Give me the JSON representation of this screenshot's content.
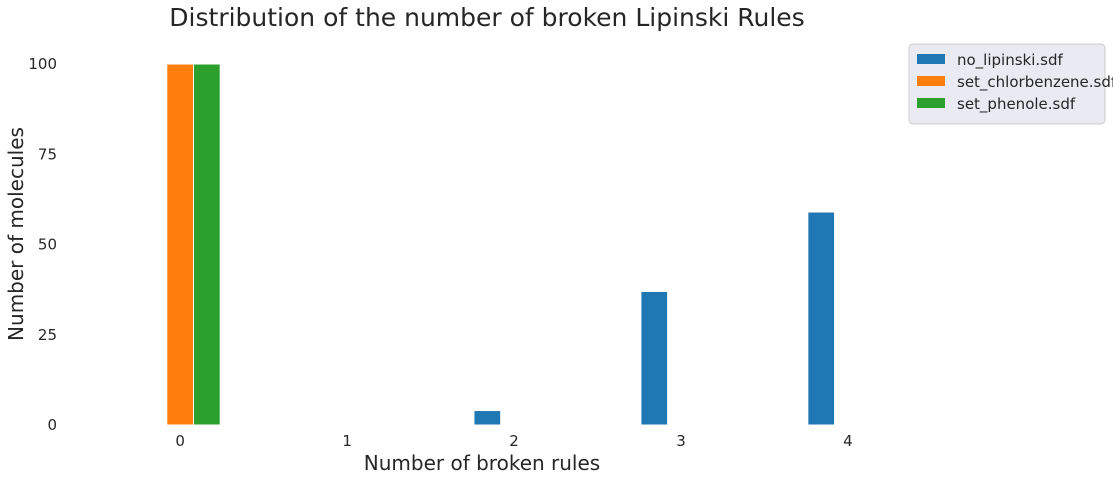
{
  "chart_data": {
    "type": "bar",
    "title": "Distribution of the number of broken Lipinski Rules",
    "xlabel": "Number of broken rules",
    "ylabel": "Number of molecules",
    "categories": [
      "0",
      "1",
      "2",
      "3",
      "4"
    ],
    "x_ticks": [
      "0",
      "1",
      "2",
      "3",
      "4"
    ],
    "y_ticks": [
      "0",
      "25",
      "50",
      "75",
      "100"
    ],
    "ylim": [
      0,
      100
    ],
    "xlim": [
      -0.6,
      5.6
    ],
    "grid": false,
    "legend_position": "top-right",
    "series": [
      {
        "name": "no_lipinski.sdf",
        "color": "#1f77b4",
        "values": [
          0,
          0,
          4,
          37,
          59
        ]
      },
      {
        "name": "set_chlorbenzene.sdf",
        "color": "#ff7f0e",
        "values": [
          100,
          0,
          0,
          0,
          0
        ]
      },
      {
        "name": "set_phenole.sdf",
        "color": "#2ca02c",
        "values": [
          100,
          0,
          0,
          0,
          0
        ]
      }
    ]
  }
}
